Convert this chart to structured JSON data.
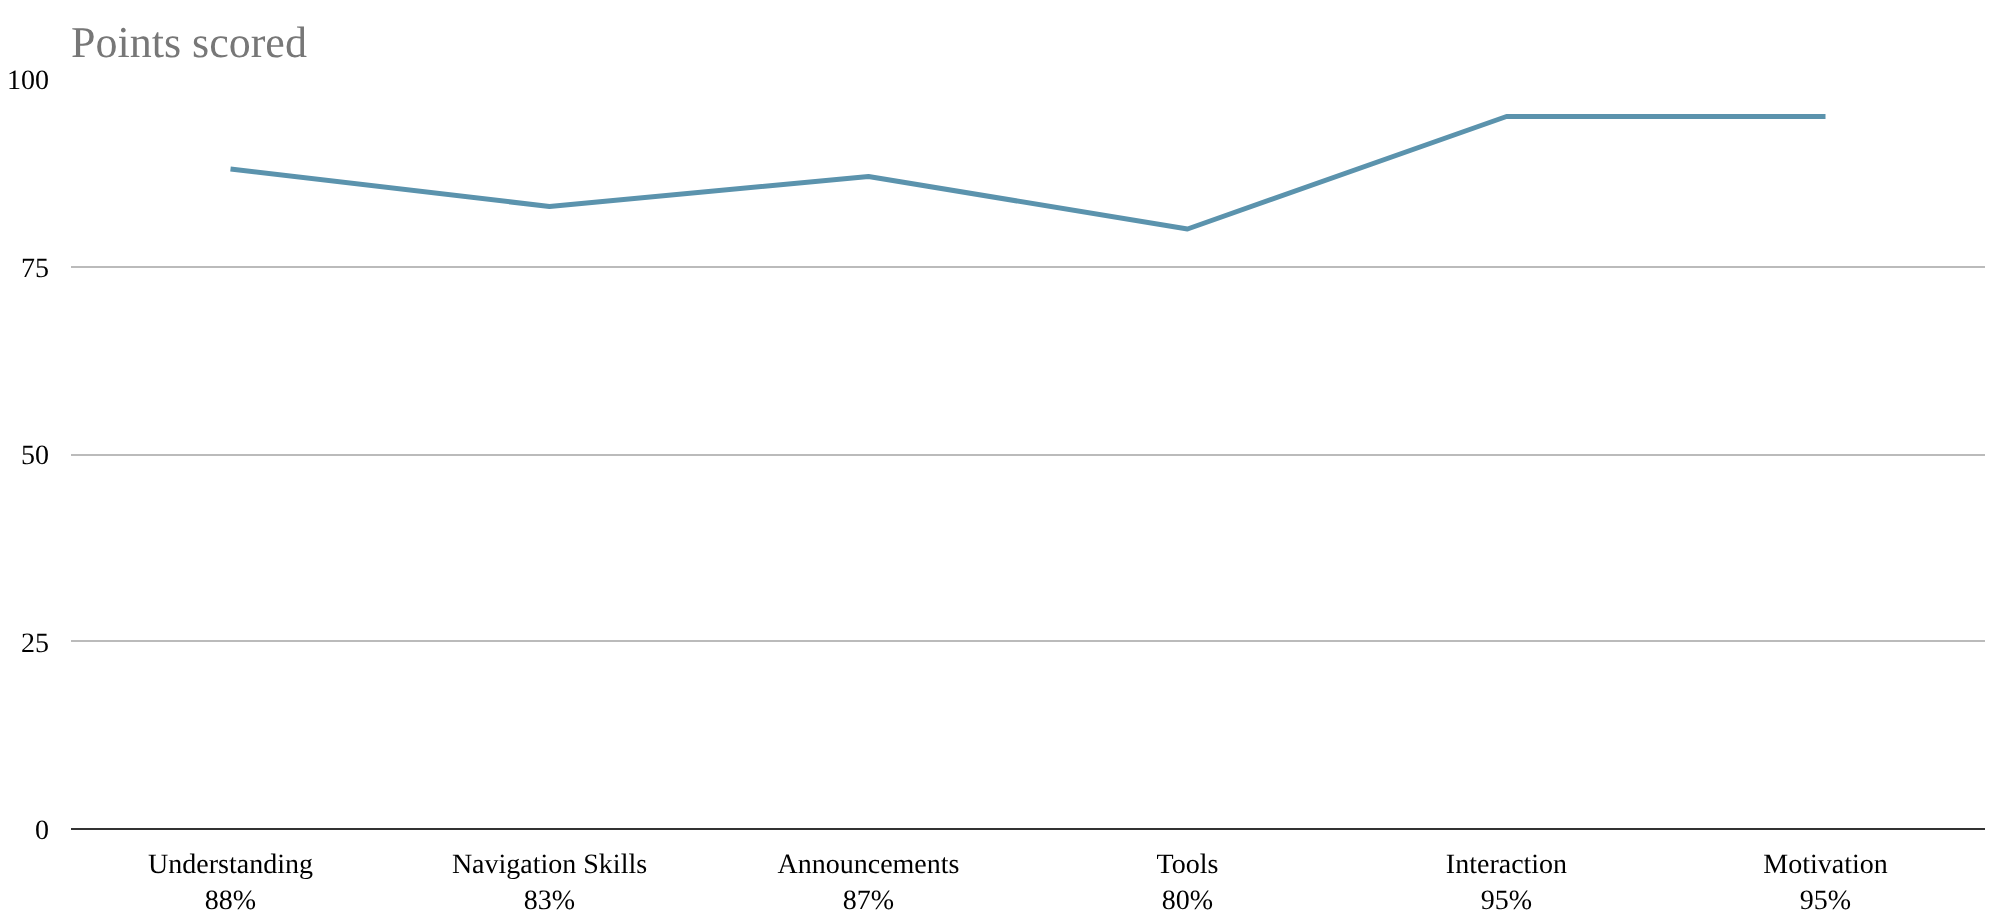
{
  "chart_data": {
    "type": "line",
    "title": "Points scored",
    "categories": [
      "Understanding\n88%",
      "Navigation Skills\n83%",
      "Announcements\n87%",
      "Tools\n80%",
      "Interaction\n95%",
      "Motivation\n95%"
    ],
    "series": [
      {
        "color": "#5b93ad",
        "values": [
          88,
          83,
          87,
          80,
          95,
          95
        ]
      }
    ],
    "ylim": [
      0,
      100
    ],
    "yticks": [
      0,
      25,
      50,
      75,
      100
    ],
    "grid": "y",
    "marker": "none",
    "line_style": "solid"
  }
}
